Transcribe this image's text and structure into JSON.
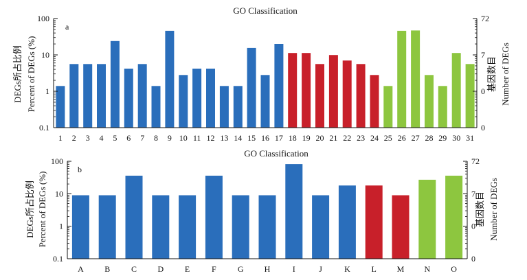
{
  "colors": {
    "blue": "#2a6ebb",
    "red": "#c8202a",
    "green": "#8dc63f",
    "axis": "#111111"
  },
  "chart_data": [
    {
      "type": "bar",
      "panel_label": "a",
      "title": "GO Classification",
      "ylabel_left": [
        "DEGs所占比例",
        "Percent of DEGs (%)"
      ],
      "ylabel_right": [
        "基因数目",
        "Number of DEGs"
      ],
      "y_scale": "log",
      "ylim": [
        0.1,
        100
      ],
      "yticks_left": [
        "0.1",
        "1",
        "10",
        "100"
      ],
      "yticks_right": [
        "0",
        "0",
        "7",
        "72"
      ],
      "categories": [
        "1",
        "2",
        "3",
        "4",
        "5",
        "6",
        "7",
        "8",
        "9",
        "10",
        "11",
        "12",
        "13",
        "14",
        "15",
        "16",
        "17",
        "18",
        "19",
        "20",
        "21",
        "22",
        "23",
        "24",
        "25",
        "26",
        "27",
        "28",
        "29",
        "30",
        "31"
      ],
      "values": [
        1.4,
        5.6,
        5.6,
        5.6,
        24,
        4.2,
        5.6,
        1.4,
        46,
        2.8,
        4.2,
        4.2,
        1.4,
        1.4,
        15.5,
        2.8,
        20,
        11.3,
        11.3,
        5.6,
        9.9,
        7.0,
        5.6,
        2.8,
        1.4,
        46,
        47,
        2.8,
        1.4,
        11.3,
        5.6
      ],
      "bar_colors": [
        "blue",
        "blue",
        "blue",
        "blue",
        "blue",
        "blue",
        "blue",
        "blue",
        "blue",
        "blue",
        "blue",
        "blue",
        "blue",
        "blue",
        "blue",
        "blue",
        "blue",
        "red",
        "red",
        "red",
        "red",
        "red",
        "red",
        "red",
        "green",
        "green",
        "green",
        "green",
        "green",
        "green",
        "green"
      ],
      "grid": false
    },
    {
      "type": "bar",
      "panel_label": "b",
      "title": "GO Classification",
      "ylabel_left": [
        "DEGs所占比例",
        "Percent of DEGs (%)"
      ],
      "ylabel_right": [
        "基因数目",
        "Number of DEGs"
      ],
      "y_scale": "log",
      "ylim": [
        0.1,
        100
      ],
      "yticks_left": [
        "0.1",
        "1",
        "10",
        "100"
      ],
      "yticks_right": [
        "0",
        "0",
        "7",
        "72"
      ],
      "categories": [
        "A",
        "B",
        "C",
        "D",
        "E",
        "F",
        "G",
        "H",
        "I",
        "J",
        "K",
        "L",
        "M",
        "N",
        "O"
      ],
      "values": [
        9,
        9,
        36,
        9,
        9,
        36,
        9,
        9,
        82,
        9,
        18,
        18,
        9,
        27,
        36
      ],
      "bar_colors": [
        "blue",
        "blue",
        "blue",
        "blue",
        "blue",
        "blue",
        "blue",
        "blue",
        "blue",
        "blue",
        "blue",
        "red",
        "red",
        "green",
        "green"
      ],
      "grid": false
    }
  ]
}
